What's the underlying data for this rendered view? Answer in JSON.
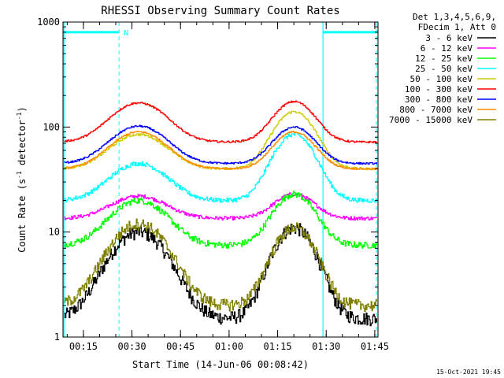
{
  "chart_data": {
    "type": "line",
    "title": "RHESSI Observing Summary Count Rates",
    "xlabel": "Start Time (14-Jun-06 00:08:42)",
    "ylabel": "Count Rate (s⁻¹ detector⁻¹)",
    "ylabel_parts": [
      "Count Rate (s",
      "-1",
      " detector",
      "-1",
      ")"
    ],
    "y_scale": "log",
    "ylim": [
      1,
      1000
    ],
    "y_ticks": [
      {
        "value": 1,
        "label": "1"
      },
      {
        "value": 10,
        "label": "10"
      },
      {
        "value": 100,
        "label": "100"
      },
      {
        "value": 1000,
        "label": "1000"
      }
    ],
    "xlim": [
      "00:08:42",
      "01:46:00"
    ],
    "x_ticks": [
      {
        "value": "00:15",
        "minutes": 15
      },
      {
        "value": "00:30",
        "minutes": 30
      },
      {
        "value": "00:45",
        "minutes": 45
      },
      {
        "value": "01:00",
        "minutes": 60
      },
      {
        "value": "01:15",
        "minutes": 75
      },
      {
        "value": "01:30",
        "minutes": 90
      },
      {
        "value": "01:45",
        "minutes": 105
      }
    ],
    "legend_header": [
      "Det 1,3,4,5,6,9,",
      "FDecim 1, Att 0"
    ],
    "legend_position": "right",
    "attenuator_bars": [
      {
        "from": "00:08:42",
        "to": "00:26:00",
        "value": 800
      },
      {
        "from": "01:29:00",
        "to": "01:46:00",
        "value": 800
      }
    ],
    "night_lines": [
      "00:09:00",
      "01:29:00"
    ],
    "saa_lines": [
      "00:26:00",
      "01:45:30"
    ],
    "marker_label": "N",
    "series": [
      {
        "name": "3 - 6 keV",
        "color": "#000000",
        "base": 1.5,
        "peaks": [
          [
            32,
            10
          ],
          [
            80,
            11
          ]
        ],
        "noise": 0.15
      },
      {
        "name": "6 - 12 keV",
        "color": "#ff00ff",
        "base": 13.5,
        "peaks": [
          [
            32,
            22
          ],
          [
            80,
            23
          ]
        ],
        "noise": 0.04
      },
      {
        "name": "12 - 25 keV",
        "color": "#00ff00",
        "base": 7.5,
        "peaks": [
          [
            32,
            20
          ],
          [
            80,
            23
          ]
        ],
        "noise": 0.07
      },
      {
        "name": "25 - 50 keV",
        "color": "#00ffff",
        "base": 20,
        "peaks": [
          [
            32,
            45
          ],
          [
            80,
            85
          ]
        ],
        "noise": 0.05
      },
      {
        "name": "50 - 100 keV",
        "color": "#cccc00",
        "base": 40,
        "peaks": [
          [
            32,
            85
          ],
          [
            80,
            140
          ]
        ],
        "noise": 0.025
      },
      {
        "name": "100 - 300 keV",
        "color": "#ff0000",
        "base": 72,
        "peaks": [
          [
            32,
            170
          ],
          [
            80,
            175
          ]
        ],
        "noise": 0.02
      },
      {
        "name": "300 - 800 keV",
        "color": "#0000ff",
        "base": 45,
        "peaks": [
          [
            32,
            102
          ],
          [
            80,
            100
          ]
        ],
        "noise": 0.02
      },
      {
        "name": "800 - 7000 keV",
        "color": "#ff8c00",
        "base": 40,
        "peaks": [
          [
            32,
            90
          ],
          [
            80,
            90
          ]
        ],
        "noise": 0.02
      },
      {
        "name": "7000 - 15000 keV",
        "color": "#808000",
        "base": 2.0,
        "peaks": [
          [
            32,
            12
          ],
          [
            80,
            11
          ]
        ],
        "noise": 0.13
      }
    ]
  },
  "footer": {
    "timestamp": "15-Oct-2021 19:45"
  }
}
